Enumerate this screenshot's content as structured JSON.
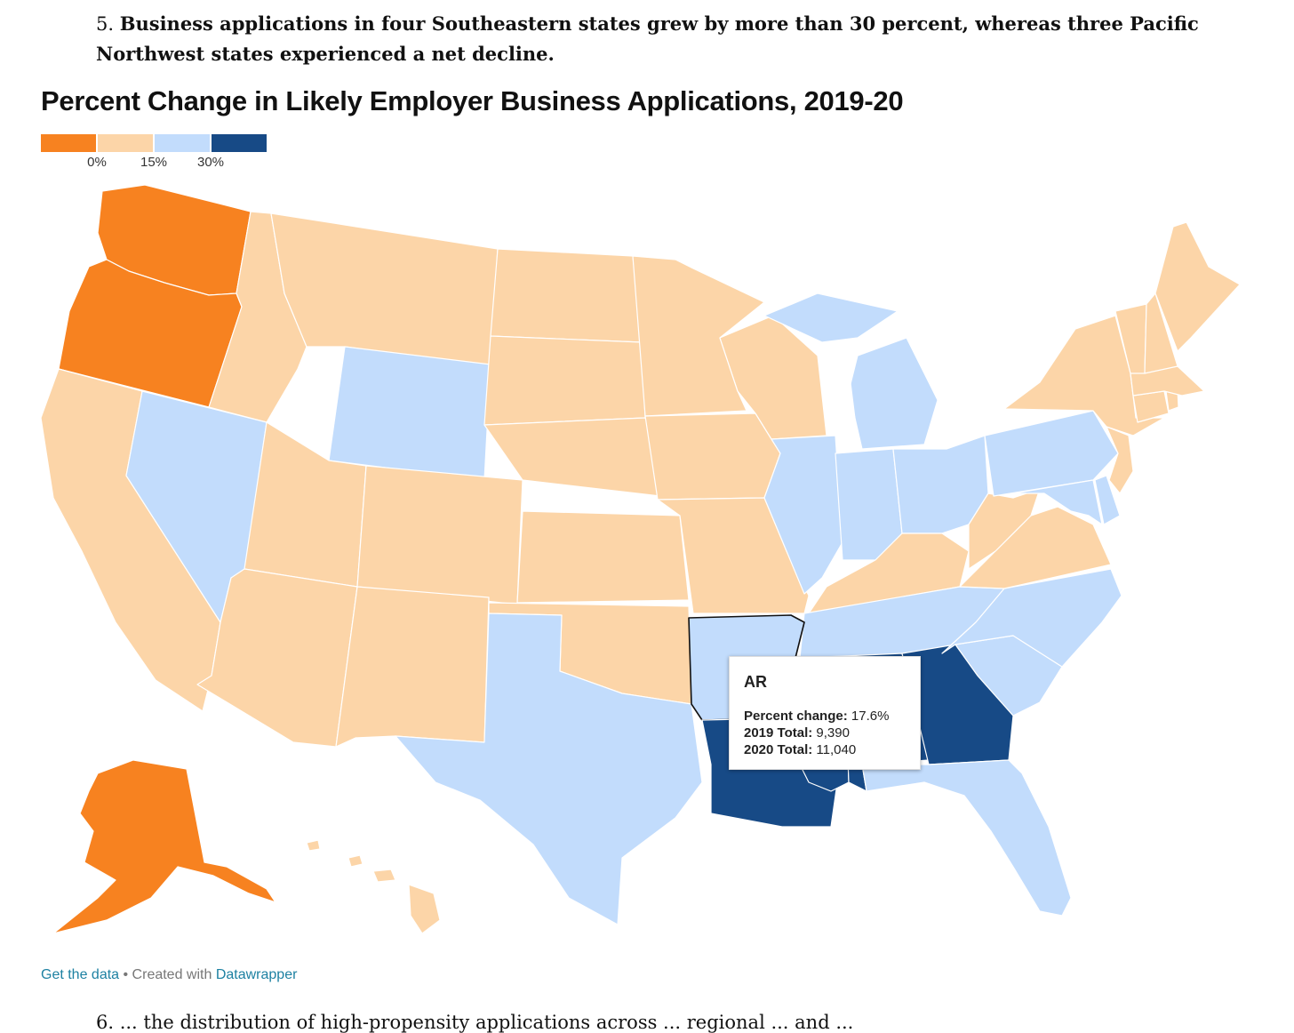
{
  "intro": {
    "number": "5.",
    "text": "Business applications in four Southeastern states grew by more than 30 percent, whereas three Pacific Northwest states experienced a net decline."
  },
  "map": {
    "title": "Percent Change in Likely Employer Business Applications, 2019-20",
    "legend": {
      "colors": [
        "#f78220",
        "#fcd5a8",
        "#c2dcfc",
        "#174a86"
      ],
      "ticks": [
        "0%",
        "15%",
        "30%"
      ]
    },
    "bins": {
      "below_0": [
        "WA",
        "OR",
        "AK"
      ],
      "0_to_15": [
        "CA",
        "ID",
        "MT",
        "UT",
        "AZ",
        "CO",
        "NM",
        "ND",
        "SD",
        "NE",
        "KS",
        "OK",
        "MN",
        "IA",
        "MO",
        "WI",
        "KY",
        "WV",
        "VA",
        "NY",
        "VT",
        "NH",
        "ME",
        "MA",
        "CT",
        "RI",
        "NJ",
        "HI"
      ],
      "15_to_30": [
        "NV",
        "WY",
        "TX",
        "AR",
        "IL",
        "MI",
        "IN",
        "OH",
        "PA",
        "MD",
        "DE",
        "TN",
        "NC",
        "SC",
        "FL"
      ],
      "above_30": [
        "LA",
        "MS",
        "AL",
        "GA"
      ]
    },
    "highlighted_state": "AR",
    "tooltip": {
      "title": "AR",
      "percent_label": "Percent change:",
      "percent_value": "17.6%",
      "total2019_label": "2019 Total:",
      "total2019_value": "9,390",
      "total2020_label": "2020 Total:",
      "total2020_value": "11,040"
    }
  },
  "footer": {
    "get_data": "Get the data",
    "separator": " • Created with ",
    "tool": "Datawrapper"
  },
  "outro": {
    "text": "6. ... the distribution of high-propensity applications across ... regional ... and ..."
  }
}
